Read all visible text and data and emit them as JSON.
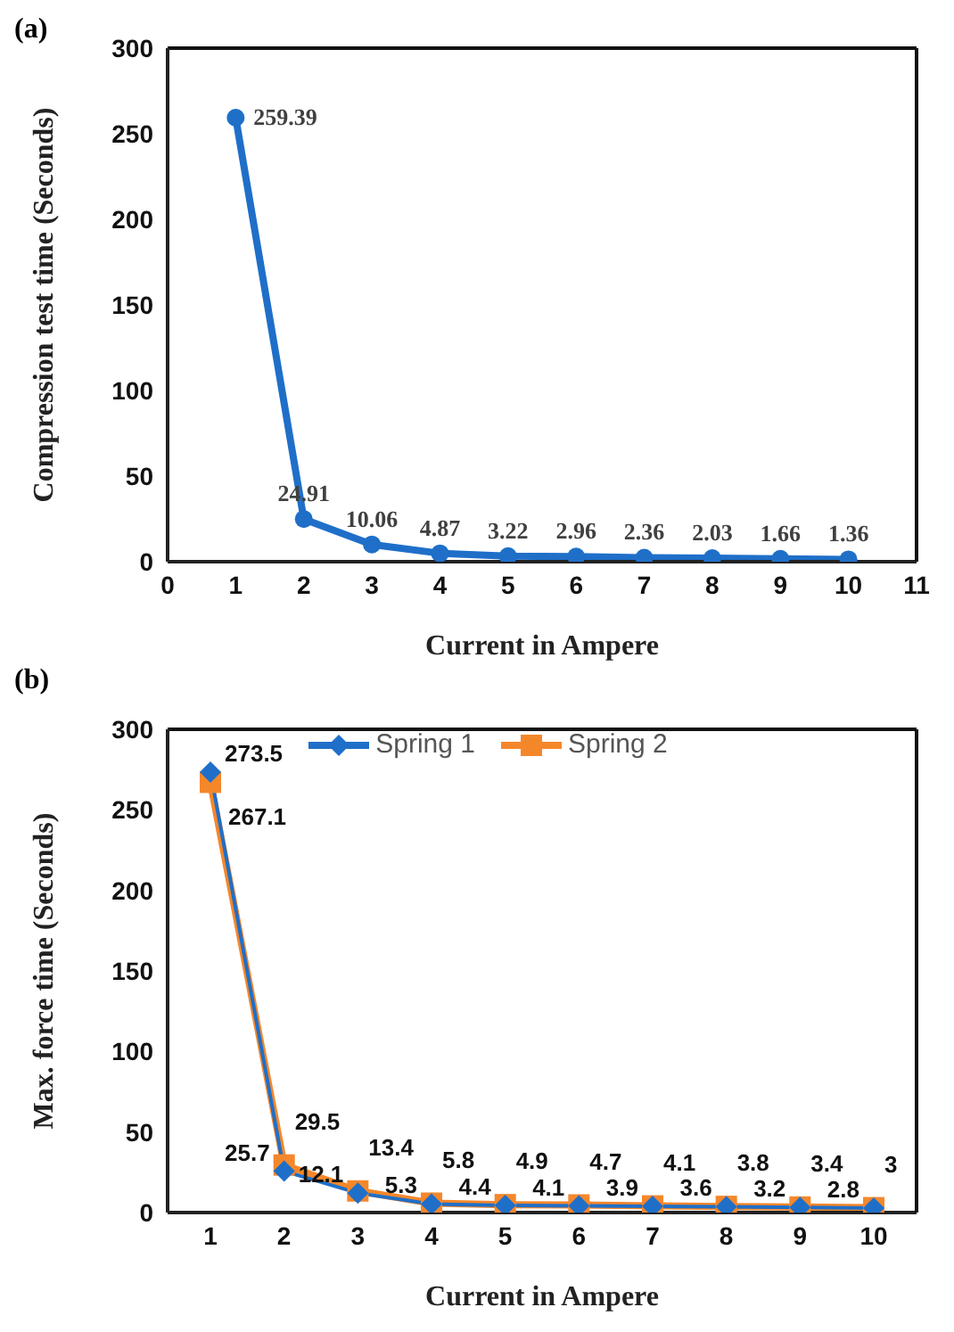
{
  "chart_data": [
    {
      "type": "line",
      "title": "(a)",
      "xlabel": "Current in Ampere",
      "ylabel": "Compression test time (Seconds)",
      "x": [
        1,
        2,
        3,
        4,
        5,
        6,
        7,
        8,
        9,
        10
      ],
      "values": [
        259.39,
        24.91,
        10.06,
        4.87,
        3.22,
        2.96,
        2.36,
        2.03,
        1.66,
        1.36
      ],
      "color": "#1f6fc9",
      "marker": "circle",
      "xlim": [
        0,
        11
      ],
      "xticks": [
        0,
        1,
        2,
        3,
        4,
        5,
        6,
        7,
        8,
        9,
        10,
        11
      ],
      "ylim": [
        0,
        300
      ],
      "yticks": [
        0,
        50,
        100,
        150,
        200,
        250,
        300
      ],
      "grid": false,
      "data_labels": true
    },
    {
      "type": "line",
      "title": "(b)",
      "xlabel": "Current in Ampere",
      "ylabel": "Max. force time (Seconds)",
      "categories": [
        "1",
        "2",
        "3",
        "4",
        "5",
        "6",
        "7",
        "8",
        "9",
        "10"
      ],
      "series": [
        {
          "name": "Spring 1",
          "color": "#1f6fc9",
          "marker": "diamond",
          "values": [
            273.5,
            25.7,
            12.1,
            5.3,
            4.4,
            4.1,
            3.9,
            3.6,
            3.2,
            2.8
          ]
        },
        {
          "name": "Spring 2",
          "color": "#f5872b",
          "marker": "square",
          "values": [
            267.1,
            29.5,
            13.4,
            5.8,
            4.9,
            4.7,
            4.1,
            3.8,
            3.4,
            3
          ]
        }
      ],
      "ylim": [
        0,
        300
      ],
      "yticks": [
        0,
        50,
        100,
        150,
        200,
        250,
        300
      ],
      "grid": false,
      "legend": "top",
      "data_labels": true
    }
  ]
}
